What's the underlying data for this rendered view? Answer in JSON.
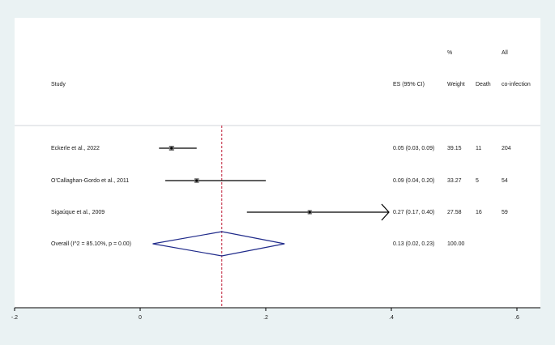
{
  "headers": {
    "study": "Study",
    "es": "ES (95% CI)",
    "weight_top": "%",
    "weight": "Weight",
    "death": "Death",
    "all_top": "All",
    "coinf": "co-infection"
  },
  "chart_data": {
    "type": "forest",
    "x_ticks": [
      "-.2",
      "0",
      ".2",
      ".4",
      ".6"
    ],
    "x_tick_values": [
      -0.2,
      0,
      0.2,
      0.4,
      0.6
    ],
    "xlim": [
      -0.2,
      0.6
    ],
    "reference_line": 0.13,
    "studies": [
      {
        "label": "Eckerle et al., 2022",
        "es": 0.05,
        "lo": 0.03,
        "hi": 0.09,
        "es_text": "0.05 (0.03, 0.09)",
        "weight": "39.15",
        "death": "11",
        "coinf": "204"
      },
      {
        "label": "O'Callaghan-Gordo et al., 2011",
        "es": 0.09,
        "lo": 0.04,
        "hi": 0.2,
        "es_text": "0.09 (0.04, 0.20)",
        "weight": "33.27",
        "death": "5",
        "coinf": "54"
      },
      {
        "label": "Sigaúque et al., 2009",
        "es": 0.27,
        "lo": 0.17,
        "hi": 0.4,
        "es_text": "0.27 (0.17, 0.40)",
        "weight": "27.58",
        "death": "16",
        "coinf": "59"
      }
    ],
    "overall": {
      "label": "Overall  (I^2 = 85.10%, p = 0.00)",
      "es": 0.13,
      "lo": 0.02,
      "hi": 0.23,
      "es_text": "0.13 (0.02, 0.23)",
      "weight": "100.00"
    },
    "colors": {
      "line": "#000000",
      "diamond": "#1f2a8a",
      "reference": "#c0203a"
    }
  }
}
